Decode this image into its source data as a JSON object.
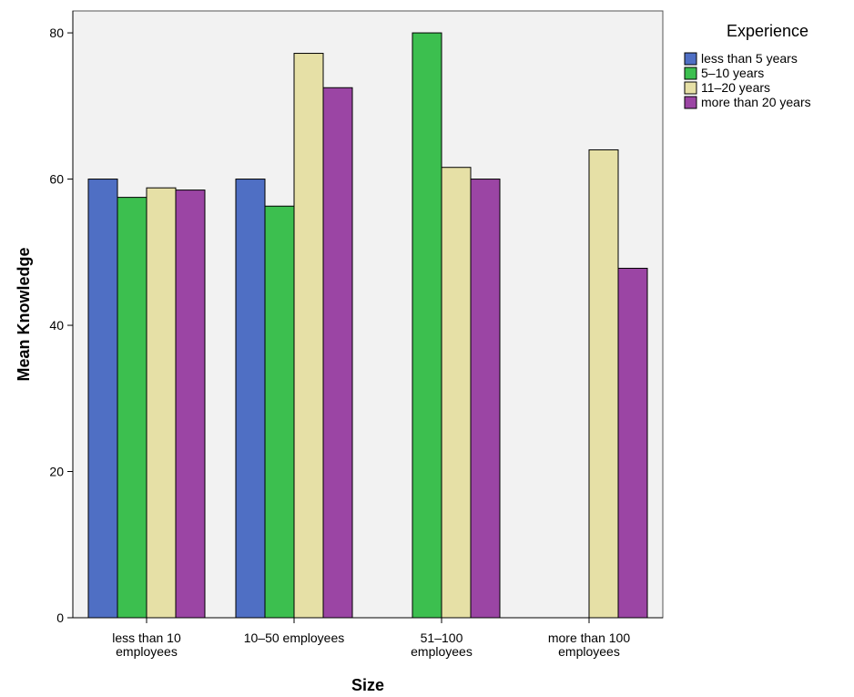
{
  "chart_data": {
    "type": "bar",
    "xlabel": "Size",
    "ylabel": "Mean Knowledge",
    "ylim": [
      0,
      83
    ],
    "yticks": [
      0,
      20,
      40,
      60,
      80
    ],
    "grid": false,
    "legend_position": "right",
    "legend_title": "Experience",
    "categories": [
      [
        "less than 10",
        "employees"
      ],
      [
        "10–50 employees"
      ],
      [
        "51–100",
        "employees"
      ],
      [
        "more than 100",
        "employees"
      ]
    ],
    "series": [
      {
        "name": "less than 5 years",
        "color": "#4f6fc4",
        "values": [
          60,
          60,
          null,
          null
        ]
      },
      {
        "name": "5–10 years",
        "color": "#3cbf4f",
        "values": [
          57.5,
          56.3,
          80,
          null
        ]
      },
      {
        "name": "11–20 years",
        "color": "#e6e0a6",
        "values": [
          58.8,
          77.2,
          61.6,
          64
        ]
      },
      {
        "name": "more than 20 years",
        "color": "#9b45a4",
        "values": [
          58.5,
          72.5,
          60,
          47.8
        ]
      }
    ]
  }
}
